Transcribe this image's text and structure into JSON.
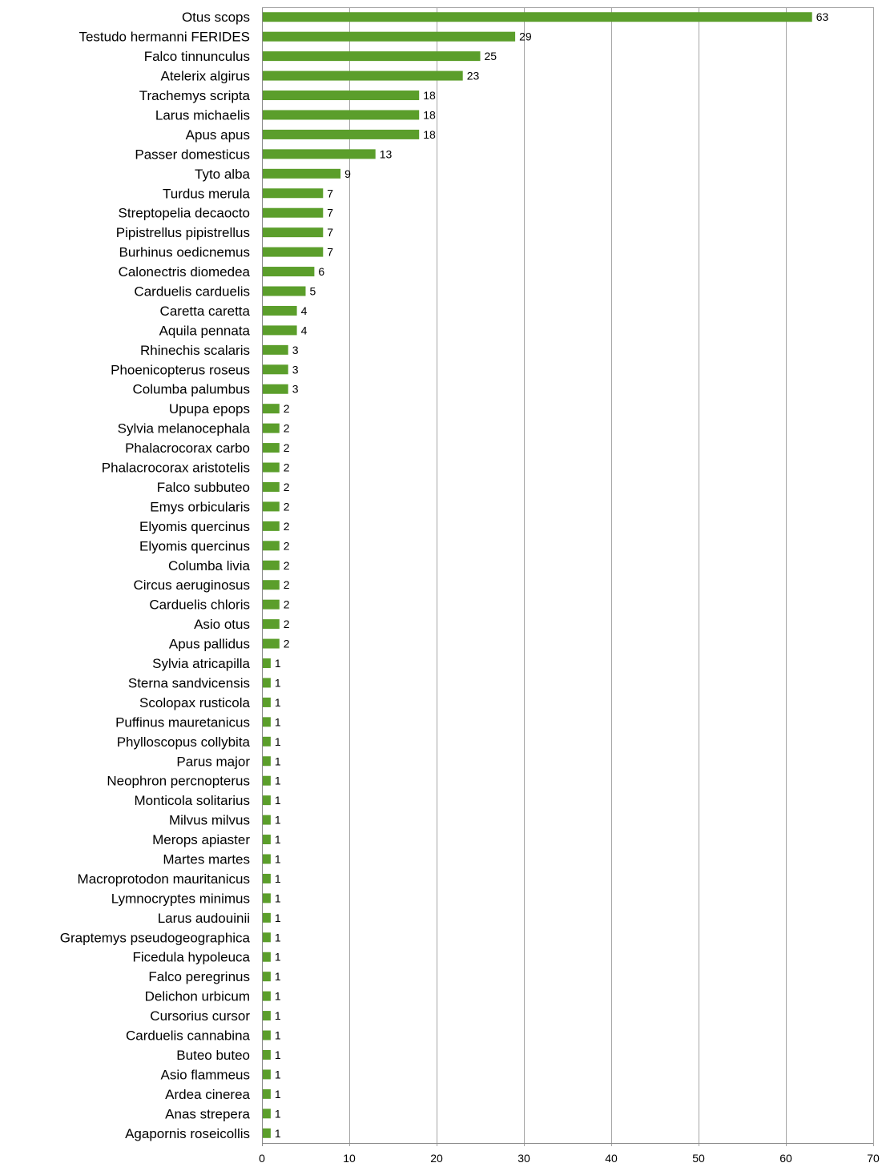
{
  "chart_data": {
    "type": "bar",
    "orientation": "horizontal",
    "title": "",
    "xlabel": "",
    "ylabel": "",
    "xlim": [
      0,
      70
    ],
    "x_ticks": [
      0,
      10,
      20,
      30,
      40,
      50,
      60,
      70
    ],
    "grid": "vertical",
    "bar_color": "#5b9e2b",
    "categories": [
      "Otus scops",
      "Testudo hermanni FERIDES",
      "Falco tinnunculus",
      "Atelerix algirus",
      "Trachemys scripta",
      "Larus michaelis",
      "Apus apus",
      "Passer domesticus",
      "Tyto alba",
      "Turdus merula",
      "Streptopelia decaocto",
      "Pipistrellus pipistrellus",
      "Burhinus oedicnemus",
      "Calonectris diomedea",
      "Carduelis carduelis",
      "Caretta caretta",
      "Aquila pennata",
      "Rhinechis scalaris",
      "Phoenicopterus roseus",
      "Columba palumbus",
      "Upupa epops",
      "Sylvia melanocephala",
      "Phalacrocorax carbo",
      "Phalacrocorax aristotelis",
      "Falco subbuteo",
      "Emys orbicularis",
      "Elyomis quercinus",
      "Elyomis quercinus",
      "Columba livia",
      "Circus aeruginosus",
      "Carduelis chloris",
      "Asio otus",
      "Apus pallidus",
      "Sylvia atricapilla",
      "Sterna sandvicensis",
      "Scolopax rusticola",
      "Puffinus mauretanicus",
      "Phylloscopus collybita",
      "Parus major",
      "Neophron percnopterus",
      "Monticola solitarius",
      "Milvus milvus",
      "Merops apiaster",
      "Martes martes",
      "Macroprotodon mauritanicus",
      "Lymnocryptes minimus",
      "Larus audouinii",
      "Graptemys pseudogeographica",
      "Ficedula hypoleuca",
      "Falco peregrinus",
      "Delichon urbicum",
      "Cursorius cursor",
      "Carduelis cannabina",
      "Buteo buteo",
      "Asio flammeus",
      "Ardea cinerea",
      "Anas strepera",
      "Agapornis roseicollis"
    ],
    "values": [
      63,
      29,
      25,
      23,
      18,
      18,
      18,
      13,
      9,
      7,
      7,
      7,
      7,
      6,
      5,
      4,
      4,
      3,
      3,
      3,
      2,
      2,
      2,
      2,
      2,
      2,
      2,
      2,
      2,
      2,
      2,
      2,
      2,
      1,
      1,
      1,
      1,
      1,
      1,
      1,
      1,
      1,
      1,
      1,
      1,
      1,
      1,
      1,
      1,
      1,
      1,
      1,
      1,
      1,
      1,
      1,
      1,
      1
    ]
  }
}
